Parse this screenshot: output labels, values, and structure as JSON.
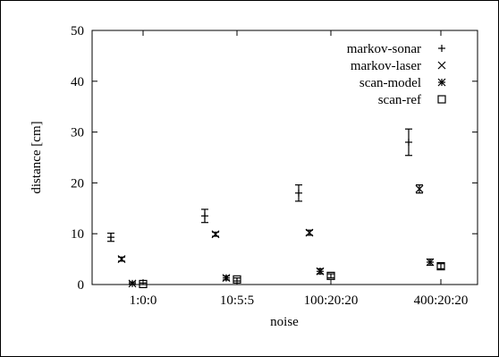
{
  "chart_data": {
    "type": "scatter",
    "xlabel": "noise",
    "ylabel": "distance [cm]",
    "ylim": [
      0,
      50
    ],
    "yticks": [
      0,
      10,
      20,
      30,
      40,
      50
    ],
    "categories": [
      "1:0:0",
      "10:5:5",
      "100:20:20",
      "400:20:20"
    ],
    "legend_position": "top-right",
    "series": [
      {
        "name": "markov-sonar",
        "marker": "plus",
        "values": [
          9.3,
          13.5,
          18.0,
          28.0
        ],
        "errors": [
          0.8,
          1.3,
          1.6,
          2.6
        ]
      },
      {
        "name": "markov-laser",
        "marker": "cross",
        "values": [
          5.0,
          9.9,
          10.2,
          18.8
        ],
        "errors": [
          0.4,
          0.4,
          0.5,
          0.8
        ]
      },
      {
        "name": "scan-model",
        "marker": "star",
        "values": [
          0.2,
          1.3,
          2.6,
          4.4
        ],
        "errors": [
          0.3,
          0.4,
          0.5,
          0.6
        ]
      },
      {
        "name": "scan-ref",
        "marker": "box",
        "values": [
          0.1,
          1.0,
          1.7,
          3.6
        ],
        "errors": [
          0.2,
          0.3,
          0.4,
          0.5
        ]
      }
    ]
  }
}
